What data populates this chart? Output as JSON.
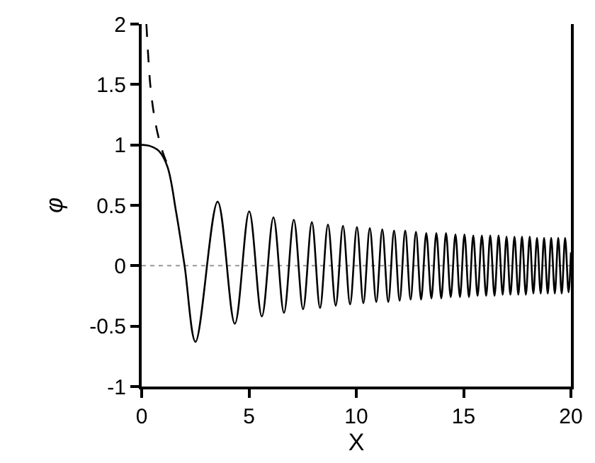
{
  "chart_data": {
    "type": "line",
    "xlabel": "X",
    "ylabel": "φ",
    "xlim": [
      0,
      20
    ],
    "ylim": [
      -1,
      2
    ],
    "xticks": [
      0,
      5,
      10,
      15,
      20
    ],
    "yticks": [
      -1,
      -0.5,
      0,
      0.5,
      1,
      1.5,
      2
    ],
    "grid": false,
    "marker": "none",
    "series": [
      {
        "color": "#000000",
        "line_style": "solid",
        "x": [
          0,
          0.4,
          0.8,
          1.2,
          1.6,
          2.0,
          2.51,
          3.54,
          4.34,
          5.01,
          5.6,
          6.14,
          6.63,
          7.09,
          7.52,
          7.93,
          8.31,
          8.68,
          9.04,
          9.38,
          9.71,
          10.03,
          10.33,
          10.63,
          10.93,
          11.21,
          11.49,
          11.76,
          12.02,
          12.28,
          12.53,
          12.78,
          13.02,
          13.26,
          13.5,
          13.73,
          13.96,
          14.18,
          14.4,
          14.62,
          14.83,
          15.04,
          15.25,
          15.45,
          15.65,
          15.85,
          16.05,
          16.24,
          16.44,
          16.63,
          16.82,
          17.0,
          17.18,
          17.37,
          17.55,
          17.72,
          17.9,
          18.08,
          18.25,
          18.42,
          18.59,
          18.75,
          18.92,
          19.08,
          19.25,
          19.41,
          19.57,
          19.73,
          19.89,
          20
        ],
        "values": [
          1,
          0.99,
          0.95,
          0.82,
          0.45,
          0,
          -0.63,
          0.53,
          -0.48,
          0.45,
          -0.42,
          0.4,
          -0.39,
          0.38,
          -0.36,
          0.36,
          -0.35,
          0.34,
          -0.33,
          0.33,
          -0.32,
          0.32,
          -0.31,
          0.31,
          -0.3,
          0.3,
          -0.3,
          0.29,
          -0.29,
          0.29,
          -0.28,
          0.28,
          -0.28,
          0.27,
          -0.27,
          0.27,
          -0.27,
          0.27,
          -0.26,
          0.26,
          -0.26,
          0.26,
          -0.26,
          0.25,
          -0.25,
          0.25,
          -0.25,
          0.25,
          -0.25,
          0.25,
          -0.24,
          0.24,
          -0.24,
          0.24,
          -0.24,
          0.24,
          -0.24,
          0.24,
          -0.23,
          0.23,
          -0.23,
          0.23,
          -0.23,
          0.23,
          -0.23,
          0.23,
          -0.23,
          0.23,
          -0.22,
          0.11
        ]
      },
      {
        "color": "#000000",
        "line_style": "dashed",
        "x": [
          0.22,
          0.3,
          0.4,
          0.55,
          0.7,
          0.85,
          1.0,
          1.15
        ],
        "values": [
          2.0,
          1.75,
          1.5,
          1.28,
          1.13,
          1.02,
          0.93,
          0.86
        ]
      }
    ],
    "ref_lines": [
      {
        "axis": "y",
        "value": 0,
        "color": "#999999",
        "line_style": "dotted"
      }
    ]
  }
}
